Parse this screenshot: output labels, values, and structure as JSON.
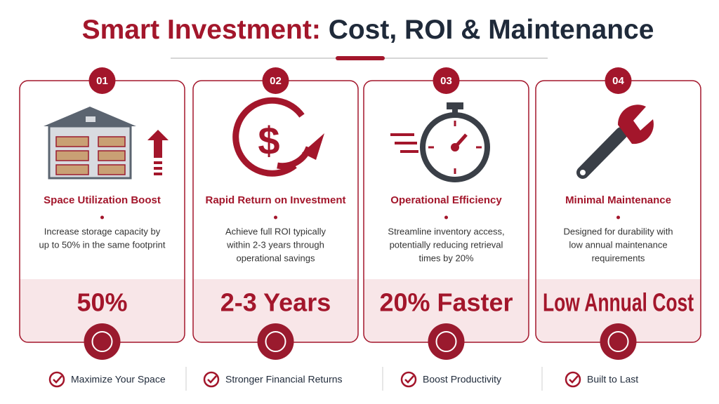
{
  "header": {
    "title_accent": "Smart Investment:",
    "title_rest": "Cost, ROI & Maintenance"
  },
  "cards": [
    {
      "number": "01",
      "heading": "Space Utilization Boost",
      "description": [
        "Increase storage capacity by",
        "up to 50% in the same footprint"
      ],
      "stat": "50%"
    },
    {
      "number": "02",
      "heading": "Rapid Return on Investment",
      "description": [
        "Achieve full ROI typically",
        "within 2-3 years through",
        "operational savings"
      ],
      "stat": "2-3 Years"
    },
    {
      "number": "03",
      "heading": "Operational Efficiency",
      "description": [
        "Streamline inventory access,",
        "potentially reducing retrieval",
        "times by 20%"
      ],
      "stat": "20% Faster"
    },
    {
      "number": "04",
      "heading": "Minimal Maintenance",
      "description": [
        "Designed for durability with",
        "low annual maintenance",
        "requirements"
      ],
      "stat": "Low Annual Cost"
    }
  ],
  "footer": [
    "Maximize Your Space",
    "Stronger Financial Returns",
    "Boost Productivity",
    "Built to Last"
  ]
}
